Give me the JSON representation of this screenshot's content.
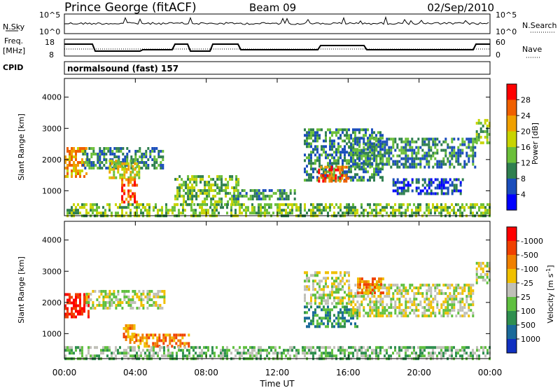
{
  "header": {
    "title": "Prince George (fitACF)",
    "beam": "Beam 09",
    "date": "02/Sep/2010"
  },
  "noise_panel": {
    "left_label": "N.Sky",
    "right_label": "N.Search",
    "ticks": [
      "10^5",
      "10^0"
    ]
  },
  "freq_panel": {
    "left_label_top": "Freq.",
    "left_label_bottom": "[MHz]",
    "left_ticks": [
      "18",
      "8"
    ],
    "right_label": "Nave",
    "right_ticks": [
      "60",
      "0"
    ]
  },
  "cpid": {
    "label": "CPID",
    "value": "normalsound (fast) 157"
  },
  "chart_data": [
    {
      "type": "heatmap",
      "name": "power",
      "ylabel": "Slant Range [km]",
      "yticks": [
        "1000",
        "2000",
        "3000",
        "4000"
      ],
      "ylim": [
        200,
        4600
      ],
      "xlim": [
        0,
        24
      ],
      "xticks": [
        "00:00",
        "04:00",
        "08:00",
        "12:00",
        "16:00",
        "20:00",
        "00:00"
      ],
      "xlabel": "Time UT",
      "colorbar": {
        "label": "Power [dB]",
        "ticks": [
          "4",
          "8",
          "12",
          "16",
          "20",
          "24",
          "28"
        ],
        "colors": [
          "#0000ff",
          "#1a4dbb",
          "#2f7f4f",
          "#6bbf3a",
          "#c8d400",
          "#f0a000",
          "#f06000",
          "#ff0000"
        ]
      },
      "regions": [
        {
          "t0": 0.0,
          "t1": 1.3,
          "r0": 1500,
          "r1": 2400,
          "level": 5
        },
        {
          "t0": 1.0,
          "t1": 5.6,
          "r0": 1700,
          "r1": 2400,
          "level": 2
        },
        {
          "t0": 2.5,
          "t1": 4.2,
          "r0": 1400,
          "r1": 2000,
          "level": 4
        },
        {
          "t0": 3.2,
          "t1": 4.1,
          "r0": 650,
          "r1": 1400,
          "level": 6
        },
        {
          "t0": 6.2,
          "t1": 9.8,
          "r0": 600,
          "r1": 1500,
          "level": 3
        },
        {
          "t0": 9.5,
          "t1": 13.0,
          "r0": 700,
          "r1": 1050,
          "level": 2
        },
        {
          "t0": 0.0,
          "t1": 24.0,
          "r0": 200,
          "r1": 600,
          "level": 3
        },
        {
          "t0": 13.5,
          "t1": 18.0,
          "r0": 1300,
          "r1": 3000,
          "level": 2
        },
        {
          "t0": 14.3,
          "t1": 16.0,
          "r0": 1300,
          "r1": 1800,
          "level": 6
        },
        {
          "t0": 16.0,
          "t1": 23.2,
          "r0": 1800,
          "r1": 2700,
          "level": 2
        },
        {
          "t0": 18.5,
          "t1": 22.5,
          "r0": 900,
          "r1": 1400,
          "level": 1
        },
        {
          "t0": 23.2,
          "t1": 24.0,
          "r0": 2500,
          "r1": 3300,
          "level": 3
        }
      ]
    },
    {
      "type": "heatmap",
      "name": "velocity",
      "ylabel": "Slant Range [km]",
      "yticks": [
        "1000",
        "2000",
        "3000",
        "4000"
      ],
      "ylim": [
        200,
        4600
      ],
      "xlim": [
        0,
        24
      ],
      "xticks": [
        "00:00",
        "04:00",
        "08:00",
        "12:00",
        "16:00",
        "20:00",
        "00:00"
      ],
      "xlabel": "Time UT",
      "colorbar": {
        "label": "Velocity  [m s^-1]",
        "ticks": [
          "1000",
          "500",
          "100",
          "25",
          "-25",
          "-100",
          "-500",
          "-1000"
        ],
        "colors": [
          "#1030c0",
          "#1a6a9a",
          "#2f8f4f",
          "#60c040",
          "#c0c0b8",
          "#f0c000",
          "#f08000",
          "#f04000",
          "#ff0000"
        ]
      },
      "regions": [
        {
          "t0": 0.0,
          "t1": 1.4,
          "r0": 1500,
          "r1": 2300,
          "level": 8
        },
        {
          "t0": 1.2,
          "t1": 5.6,
          "r0": 1800,
          "r1": 2400,
          "level": 4
        },
        {
          "t0": 3.3,
          "t1": 4.0,
          "r0": 700,
          "r1": 1300,
          "level": 6
        },
        {
          "t0": 4.0,
          "t1": 7.0,
          "r0": 600,
          "r1": 1000,
          "level": 6
        },
        {
          "t0": 0.0,
          "t1": 24.0,
          "r0": 200,
          "r1": 600,
          "level": 3
        },
        {
          "t0": 13.5,
          "t1": 16.5,
          "r0": 1200,
          "r1": 1900,
          "level": 2
        },
        {
          "t0": 13.5,
          "t1": 16.0,
          "r0": 2000,
          "r1": 3000,
          "level": 4
        },
        {
          "t0": 16.0,
          "t1": 23.0,
          "r0": 1600,
          "r1": 2600,
          "level": 4
        },
        {
          "t0": 16.5,
          "t1": 18.0,
          "r0": 2300,
          "r1": 2800,
          "level": 6
        },
        {
          "t0": 23.2,
          "t1": 24.0,
          "r0": 2600,
          "r1": 3300,
          "level": 4
        }
      ]
    }
  ]
}
